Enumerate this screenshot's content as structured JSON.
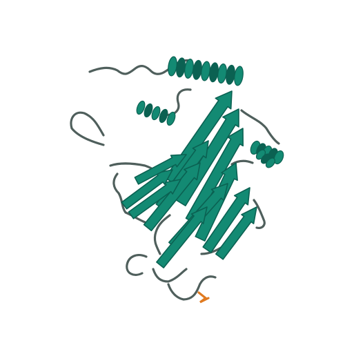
{
  "image": {
    "subject": "protein-cartoon-structure",
    "colors": {
      "background": "#ffffff",
      "ribbon": "#138a73",
      "ribbon_dark": "#0b6152",
      "coil": "#4f5f5c",
      "accent": "#e07a20"
    }
  }
}
